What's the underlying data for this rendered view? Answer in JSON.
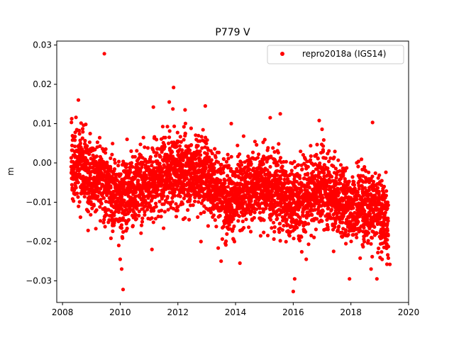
{
  "chart_data": {
    "type": "scatter",
    "title": "P779 V",
    "xlabel": "",
    "ylabel": "m",
    "xlim": [
      2007.8,
      2020.0
    ],
    "ylim": [
      -0.0355,
      0.031
    ],
    "xticks": [
      2008,
      2010,
      2012,
      2014,
      2016,
      2018,
      2020
    ],
    "xtick_labels": [
      "2008",
      "2010",
      "2012",
      "2014",
      "2016",
      "2018",
      "2020"
    ],
    "yticks": [
      -0.03,
      -0.02,
      -0.01,
      0.0,
      0.01,
      0.02,
      0.03
    ],
    "ytick_labels": [
      "−0.03",
      "−0.02",
      "−0.01",
      "0.00",
      "0.01",
      "0.02",
      "0.03"
    ],
    "grid": false,
    "legend_position": "top-right",
    "series": [
      {
        "name": "repro2018a (IGS14)",
        "color": "#ff0000",
        "marker": "circle",
        "trend": [
          [
            2008.3,
            -0.001
          ],
          [
            2008.6,
            0.0
          ],
          [
            2009.0,
            -0.003
          ],
          [
            2009.5,
            -0.006
          ],
          [
            2010.0,
            -0.009
          ],
          [
            2010.5,
            -0.006
          ],
          [
            2011.0,
            -0.005
          ],
          [
            2011.5,
            -0.003
          ],
          [
            2012.0,
            -0.002
          ],
          [
            2012.5,
            -0.002
          ],
          [
            2013.0,
            -0.003
          ],
          [
            2013.5,
            -0.008
          ],
          [
            2014.0,
            -0.009
          ],
          [
            2014.5,
            -0.006
          ],
          [
            2015.0,
            -0.006
          ],
          [
            2015.5,
            -0.007
          ],
          [
            2016.0,
            -0.01
          ],
          [
            2016.5,
            -0.009
          ],
          [
            2017.0,
            -0.005
          ],
          [
            2017.5,
            -0.009
          ],
          [
            2018.0,
            -0.011
          ],
          [
            2018.5,
            -0.01
          ],
          [
            2019.0,
            -0.013
          ],
          [
            2019.3,
            -0.016
          ]
        ],
        "outliers": [
          [
            2009.45,
            0.0278
          ],
          [
            2008.55,
            0.016
          ],
          [
            2011.85,
            0.0192
          ],
          [
            2011.7,
            0.0155
          ],
          [
            2012.25,
            0.0135
          ],
          [
            2012.95,
            0.0145
          ],
          [
            2015.55,
            0.0125
          ],
          [
            2015.2,
            0.0115
          ],
          [
            2016.9,
            0.0108
          ],
          [
            2018.75,
            0.0103
          ],
          [
            2013.85,
            0.01
          ],
          [
            2011.15,
            0.0142
          ],
          [
            2010.1,
            -0.0322
          ],
          [
            2010.05,
            -0.027
          ],
          [
            2010.0,
            -0.0245
          ],
          [
            2014.15,
            -0.0255
          ],
          [
            2016.0,
            -0.0327
          ],
          [
            2016.05,
            -0.0295
          ],
          [
            2017.95,
            -0.0295
          ],
          [
            2018.7,
            -0.027
          ],
          [
            2018.9,
            -0.0295
          ],
          [
            2013.5,
            -0.025
          ],
          [
            2011.1,
            -0.022
          ],
          [
            2012.8,
            -0.02
          ],
          [
            2019.35,
            -0.0258
          ],
          [
            2016.45,
            -0.0245
          ],
          [
            2009.95,
            -0.021
          ],
          [
            2017.4,
            -0.0225
          ]
        ]
      }
    ]
  }
}
